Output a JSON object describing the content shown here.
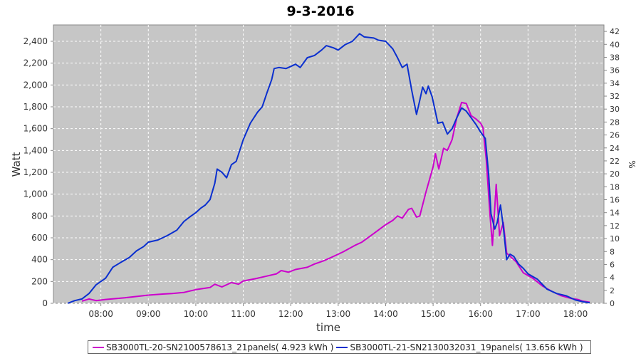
{
  "chart_data": {
    "type": "line",
    "title": "9-3-2016",
    "xlabel": "time",
    "ylabel": "Watt",
    "y2label": "%",
    "xlim": [
      7.0,
      18.6
    ],
    "ylim": [
      0,
      2550
    ],
    "y2lim": [
      0,
      43
    ],
    "x_ticks": [
      "08:00",
      "09:00",
      "10:00",
      "11:00",
      "12:00",
      "13:00",
      "14:00",
      "15:00",
      "16:00",
      "17:00",
      "18:00"
    ],
    "y_ticks": [
      "0",
      "200",
      "400",
      "600",
      "800",
      "1,000",
      "1,200",
      "1,400",
      "1,600",
      "1,800",
      "2,000",
      "2,200",
      "2,400"
    ],
    "y2_ticks": [
      "0",
      "2",
      "4",
      "6",
      "8",
      "10",
      "12",
      "14",
      "16",
      "18",
      "20",
      "22",
      "24",
      "26",
      "28",
      "30",
      "32",
      "34",
      "36",
      "38",
      "40",
      "42"
    ],
    "grid": true,
    "legend_position": "bottom",
    "series": [
      {
        "name": "SB3000TL-20-SN2100578613_21panels( 4.923 kWh )",
        "color": "#cc00cc",
        "points": [
          [
            7.6,
            20
          ],
          [
            7.75,
            40
          ],
          [
            7.9,
            25
          ],
          [
            8.1,
            35
          ],
          [
            8.5,
            50
          ],
          [
            9.0,
            75
          ],
          [
            9.3,
            85
          ],
          [
            9.5,
            90
          ],
          [
            9.75,
            100
          ],
          [
            10.0,
            125
          ],
          [
            10.3,
            145
          ],
          [
            10.4,
            175
          ],
          [
            10.55,
            150
          ],
          [
            10.75,
            190
          ],
          [
            10.9,
            175
          ],
          [
            11.0,
            205
          ],
          [
            11.25,
            225
          ],
          [
            11.5,
            250
          ],
          [
            11.7,
            270
          ],
          [
            11.8,
            300
          ],
          [
            11.95,
            285
          ],
          [
            12.1,
            310
          ],
          [
            12.35,
            330
          ],
          [
            12.5,
            360
          ],
          [
            12.7,
            390
          ],
          [
            12.9,
            430
          ],
          [
            13.1,
            470
          ],
          [
            13.35,
            530
          ],
          [
            13.5,
            560
          ],
          [
            13.75,
            640
          ],
          [
            14.0,
            720
          ],
          [
            14.15,
            760
          ],
          [
            14.25,
            800
          ],
          [
            14.35,
            780
          ],
          [
            14.48,
            860
          ],
          [
            14.55,
            870
          ],
          [
            14.65,
            790
          ],
          [
            14.72,
            800
          ],
          [
            14.85,
            1020
          ],
          [
            15.0,
            1250
          ],
          [
            15.05,
            1370
          ],
          [
            15.12,
            1230
          ],
          [
            15.22,
            1420
          ],
          [
            15.3,
            1400
          ],
          [
            15.4,
            1500
          ],
          [
            15.5,
            1700
          ],
          [
            15.6,
            1840
          ],
          [
            15.7,
            1830
          ],
          [
            15.8,
            1720
          ],
          [
            15.9,
            1690
          ],
          [
            16.0,
            1650
          ],
          [
            16.05,
            1610
          ],
          [
            16.12,
            1320
          ],
          [
            16.2,
            800
          ],
          [
            16.25,
            530
          ],
          [
            16.33,
            1090
          ],
          [
            16.4,
            620
          ],
          [
            16.48,
            740
          ],
          [
            16.55,
            460
          ],
          [
            16.65,
            420
          ],
          [
            16.75,
            380
          ],
          [
            16.9,
            280
          ],
          [
            17.1,
            230
          ],
          [
            17.3,
            160
          ],
          [
            17.5,
            110
          ],
          [
            17.7,
            70
          ],
          [
            17.9,
            45
          ],
          [
            18.05,
            35
          ],
          [
            18.15,
            20
          ],
          [
            18.3,
            10
          ]
        ]
      },
      {
        "name": "SB3000TL-21-SN2130032031_19panels( 13.656 kWh )",
        "color": "#0a2fcf",
        "points": [
          [
            7.3,
            0
          ],
          [
            7.45,
            25
          ],
          [
            7.6,
            40
          ],
          [
            7.75,
            90
          ],
          [
            7.9,
            170
          ],
          [
            8.1,
            230
          ],
          [
            8.25,
            330
          ],
          [
            8.4,
            370
          ],
          [
            8.6,
            420
          ],
          [
            8.75,
            480
          ],
          [
            8.9,
            520
          ],
          [
            9.0,
            560
          ],
          [
            9.2,
            580
          ],
          [
            9.4,
            620
          ],
          [
            9.6,
            670
          ],
          [
            9.75,
            750
          ],
          [
            9.9,
            800
          ],
          [
            10.0,
            830
          ],
          [
            10.1,
            870
          ],
          [
            10.2,
            900
          ],
          [
            10.3,
            950
          ],
          [
            10.4,
            1100
          ],
          [
            10.45,
            1230
          ],
          [
            10.55,
            1200
          ],
          [
            10.65,
            1150
          ],
          [
            10.75,
            1270
          ],
          [
            10.85,
            1300
          ],
          [
            11.0,
            1500
          ],
          [
            11.05,
            1550
          ],
          [
            11.15,
            1650
          ],
          [
            11.3,
            1750
          ],
          [
            11.4,
            1800
          ],
          [
            11.5,
            1930
          ],
          [
            11.6,
            2050
          ],
          [
            11.65,
            2150
          ],
          [
            11.75,
            2160
          ],
          [
            11.9,
            2150
          ],
          [
            12.0,
            2170
          ],
          [
            12.1,
            2190
          ],
          [
            12.2,
            2160
          ],
          [
            12.35,
            2250
          ],
          [
            12.5,
            2270
          ],
          [
            12.65,
            2320
          ],
          [
            12.75,
            2360
          ],
          [
            12.9,
            2340
          ],
          [
            13.0,
            2320
          ],
          [
            13.15,
            2370
          ],
          [
            13.3,
            2400
          ],
          [
            13.45,
            2470
          ],
          [
            13.55,
            2440
          ],
          [
            13.75,
            2430
          ],
          [
            13.85,
            2410
          ],
          [
            14.0,
            2400
          ],
          [
            14.15,
            2330
          ],
          [
            14.25,
            2250
          ],
          [
            14.35,
            2160
          ],
          [
            14.45,
            2190
          ],
          [
            14.55,
            1950
          ],
          [
            14.65,
            1730
          ],
          [
            14.72,
            1860
          ],
          [
            14.78,
            1980
          ],
          [
            14.85,
            1920
          ],
          [
            14.9,
            1990
          ],
          [
            14.98,
            1890
          ],
          [
            15.1,
            1650
          ],
          [
            15.2,
            1660
          ],
          [
            15.3,
            1550
          ],
          [
            15.4,
            1600
          ],
          [
            15.5,
            1700
          ],
          [
            15.6,
            1790
          ],
          [
            15.7,
            1760
          ],
          [
            15.8,
            1700
          ],
          [
            15.9,
            1640
          ],
          [
            16.0,
            1570
          ],
          [
            16.1,
            1510
          ],
          [
            16.17,
            1180
          ],
          [
            16.22,
            820
          ],
          [
            16.3,
            680
          ],
          [
            16.35,
            740
          ],
          [
            16.42,
            900
          ],
          [
            16.48,
            700
          ],
          [
            16.55,
            400
          ],
          [
            16.62,
            450
          ],
          [
            16.7,
            430
          ],
          [
            16.8,
            360
          ],
          [
            16.9,
            320
          ],
          [
            17.0,
            270
          ],
          [
            17.2,
            220
          ],
          [
            17.4,
            130
          ],
          [
            17.6,
            90
          ],
          [
            17.8,
            70
          ],
          [
            18.0,
            30
          ],
          [
            18.15,
            15
          ],
          [
            18.3,
            5
          ]
        ]
      }
    ]
  }
}
